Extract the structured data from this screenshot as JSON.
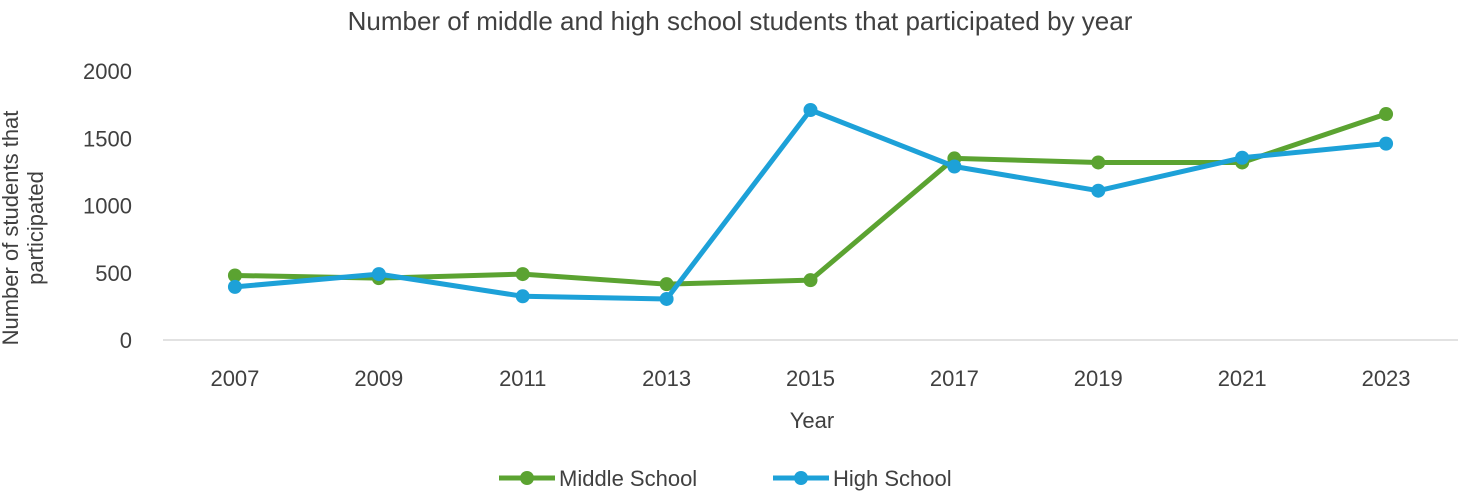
{
  "chart_data": {
    "type": "line",
    "title": "Number of middle and high school students that participated by year",
    "xlabel": "Year",
    "ylabel": "Number of students that participated",
    "ylabel_lines": [
      "Number of students that",
      "participated"
    ],
    "categories": [
      "2007",
      "2009",
      "2011",
      "2013",
      "2015",
      "2017",
      "2019",
      "2021",
      "2023"
    ],
    "series": [
      {
        "name": "Middle School",
        "color": "#5BA331",
        "values": [
          480,
          460,
          490,
          415,
          445,
          1350,
          1320,
          1320,
          1680
        ]
      },
      {
        "name": "High School",
        "color": "#1DA1D8",
        "values": [
          395,
          490,
          325,
          305,
          1710,
          1290,
          1110,
          1355,
          1460
        ]
      }
    ],
    "ylim": [
      0,
      2000
    ],
    "yticks": [
      0,
      500,
      1000,
      1500,
      2000
    ],
    "grid": false,
    "legend_position": "bottom",
    "axis_line_color": "#D9D9D9"
  }
}
